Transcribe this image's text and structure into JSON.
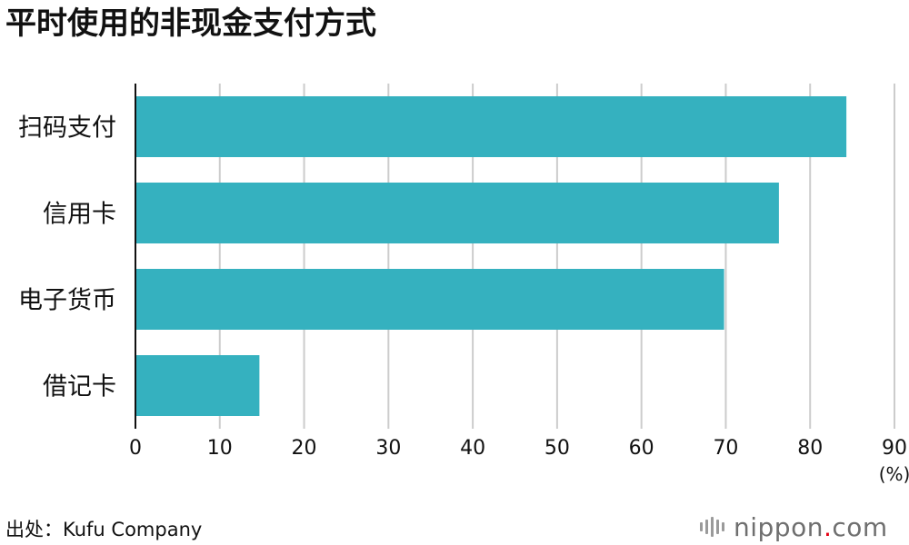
{
  "title": "平时使用的非现金支付方式",
  "source": "出处：Kufu Company",
  "brand": {
    "name": "nippon",
    "dot": ".",
    "tld": "com",
    "dot_color": "#e60012"
  },
  "colors": {
    "bar": "#35b1bf",
    "grid": "#cccccc",
    "axis": "#111111"
  },
  "chart_data": {
    "type": "bar",
    "orientation": "horizontal",
    "title": "平时使用的非现金支付方式",
    "categories": [
      "扫码支付",
      "信用卡",
      "电子货币",
      "借记卡"
    ],
    "values": [
      84.3,
      76.3,
      69.8,
      14.7
    ],
    "xlim": [
      0,
      90
    ],
    "xticks": [
      0,
      10,
      20,
      30,
      40,
      50,
      60,
      70,
      80,
      90
    ],
    "unit_label": "(%)",
    "grid": true
  }
}
